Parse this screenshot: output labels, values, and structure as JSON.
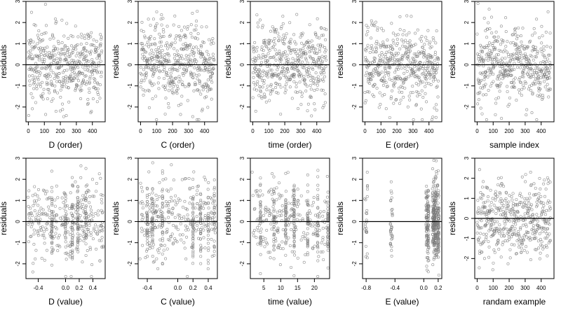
{
  "chart_data": [
    {
      "type": "scatter",
      "id": "p1",
      "xlabel": "D (order)",
      "ylabel": "residuals",
      "xlim": [
        -15,
        480
      ],
      "ylim": [
        -2.7,
        3.0
      ],
      "xticks": [
        0,
        100,
        200,
        300,
        400
      ],
      "yticks": [
        -2,
        -1,
        0,
        1,
        2,
        3
      ],
      "refline": 0,
      "x_dist": {
        "kind": "index",
        "n": 460
      },
      "y_dist": {
        "kind": "normal",
        "mean": 0,
        "sd": 0.95
      }
    },
    {
      "type": "scatter",
      "id": "p2",
      "xlabel": "C (order)",
      "ylabel": "residuals",
      "xlim": [
        -15,
        480
      ],
      "ylim": [
        -2.7,
        3.0
      ],
      "xticks": [
        0,
        100,
        200,
        300,
        400
      ],
      "yticks": [
        -2,
        -1,
        0,
        1,
        2,
        3
      ],
      "refline": 0,
      "x_dist": {
        "kind": "index",
        "n": 460
      },
      "y_dist": {
        "kind": "normal",
        "mean": 0,
        "sd": 0.95
      }
    },
    {
      "type": "scatter",
      "id": "p3",
      "xlabel": "time (order)",
      "ylabel": "residuals",
      "xlim": [
        -15,
        480
      ],
      "ylim": [
        -2.7,
        3.0
      ],
      "xticks": [
        0,
        100,
        200,
        300,
        400
      ],
      "yticks": [
        -2,
        -1,
        0,
        1,
        2,
        3
      ],
      "refline": 0,
      "x_dist": {
        "kind": "index",
        "n": 460
      },
      "y_dist": {
        "kind": "normal",
        "mean": 0,
        "sd": 0.95
      }
    },
    {
      "type": "scatter",
      "id": "p4",
      "xlabel": "E (order)",
      "ylabel": "residuals",
      "xlim": [
        -15,
        480
      ],
      "ylim": [
        -2.7,
        3.0
      ],
      "xticks": [
        0,
        100,
        200,
        300,
        400
      ],
      "yticks": [
        -2,
        -1,
        0,
        1,
        2,
        3
      ],
      "refline": 0,
      "x_dist": {
        "kind": "index",
        "n": 460
      },
      "y_dist": {
        "kind": "normal",
        "mean": 0,
        "sd": 0.95
      }
    },
    {
      "type": "scatter",
      "id": "p5",
      "xlabel": "sample index",
      "ylabel": "residuals",
      "xlim": [
        -15,
        480
      ],
      "ylim": [
        -2.7,
        3.0
      ],
      "xticks": [
        0,
        100,
        200,
        300,
        400
      ],
      "yticks": [
        -2,
        -1,
        0,
        1,
        2,
        3
      ],
      "refline": 0,
      "x_dist": {
        "kind": "index",
        "n": 460
      },
      "y_dist": {
        "kind": "normal",
        "mean": 0,
        "sd": 0.95
      }
    },
    {
      "type": "scatter",
      "id": "p6",
      "xlabel": "D (value)",
      "ylabel": "residuals",
      "xlim": [
        -0.58,
        0.58
      ],
      "ylim": [
        -2.7,
        3.0
      ],
      "xticks": [
        -0.4,
        0.0,
        0.2,
        0.4
      ],
      "xticklabels": [
        "-0.4",
        "0.0",
        "0.2",
        "0.4"
      ],
      "yticks": [
        -2,
        -1,
        0,
        1,
        2,
        3
      ],
      "refline": 0,
      "x_dist": {
        "kind": "uniform_with_columns",
        "min": -0.55,
        "max": 0.55,
        "columns": [
          -0.2,
          0.0,
          0.1,
          0.18,
          0.3
        ],
        "column_share": 0.35
      },
      "y_dist": {
        "kind": "normal",
        "mean": 0,
        "sd": 0.95
      }
    },
    {
      "type": "scatter",
      "id": "p7",
      "xlabel": "C (value)",
      "ylabel": "residuals",
      "xlim": [
        -0.52,
        0.52
      ],
      "ylim": [
        -2.7,
        3.0
      ],
      "xticks": [
        -0.4,
        0.0,
        0.2,
        0.4
      ],
      "xticklabels": [
        "-0.4",
        "0.0",
        "0.2",
        "0.4"
      ],
      "yticks": [
        -2,
        -1,
        0,
        1,
        2,
        3
      ],
      "refline": 0,
      "x_dist": {
        "kind": "uniform_with_columns",
        "min": -0.5,
        "max": 0.5,
        "columns": [
          -0.4,
          -0.33,
          -0.2,
          0.2,
          0.3,
          0.4,
          0.48
        ],
        "column_share": 0.45
      },
      "y_dist": {
        "kind": "normal",
        "mean": 0,
        "sd": 0.95
      }
    },
    {
      "type": "scatter",
      "id": "p8",
      "xlabel": "time (value)",
      "ylabel": "residuals",
      "xlim": [
        1,
        24.5
      ],
      "ylim": [
        -2.7,
        3.0
      ],
      "xticks": [
        5,
        10,
        15,
        20
      ],
      "xticklabels": [
        "5",
        "10",
        "15",
        "20"
      ],
      "yticks": [
        -2,
        -1,
        0,
        1,
        2,
        3
      ],
      "refline": 0,
      "x_dist": {
        "kind": "uniform_with_columns",
        "min": 1.5,
        "max": 24,
        "columns": [
          4,
          8,
          11.5,
          14,
          18,
          21,
          24
        ],
        "column_share": 0.5
      },
      "y_dist": {
        "kind": "normal",
        "mean": 0,
        "sd": 0.95
      }
    },
    {
      "type": "scatter",
      "id": "p9",
      "xlabel": "E (value)",
      "ylabel": "residuals",
      "xlim": [
        -0.85,
        0.25
      ],
      "ylim": [
        -2.7,
        3.0
      ],
      "xticks": [
        -0.8,
        -0.4,
        0.0,
        0.2
      ],
      "xticklabels": [
        "-0.8",
        "-0.4",
        "0.0",
        "0.2"
      ],
      "yticks": [
        -2,
        -1,
        0,
        1,
        2,
        3
      ],
      "refline": 0,
      "x_dist": {
        "kind": "clusters",
        "clusters": [
          {
            "center": -0.8,
            "spread": 0.02,
            "share": 0.06
          },
          {
            "center": -0.45,
            "spread": 0.015,
            "share": 0.08
          },
          {
            "center": 0.05,
            "spread": 0.02,
            "share": 0.2
          },
          {
            "center": 0.15,
            "spread": 0.03,
            "share": 0.45
          },
          {
            "center": 0.2,
            "spread": 0.01,
            "share": 0.21
          }
        ]
      },
      "y_dist": {
        "kind": "normal",
        "mean": 0,
        "sd": 0.95
      }
    },
    {
      "type": "scatter",
      "id": "p10",
      "xlabel": "randam example",
      "ylabel": "residuals",
      "xlim": [
        -15,
        480
      ],
      "ylim": [
        -3.0,
        3.0
      ],
      "xticks": [
        0,
        100,
        200,
        300,
        400
      ],
      "yticks": [
        -2,
        -1,
        0,
        1,
        2,
        3
      ],
      "refline": 0,
      "x_dist": {
        "kind": "index",
        "n": 460
      },
      "y_dist": {
        "kind": "normal",
        "mean": 0,
        "sd": 1.0
      }
    }
  ],
  "style": {
    "point_color": "#7a7a7a",
    "axis_color": "#000000",
    "line_color": "#000000"
  }
}
